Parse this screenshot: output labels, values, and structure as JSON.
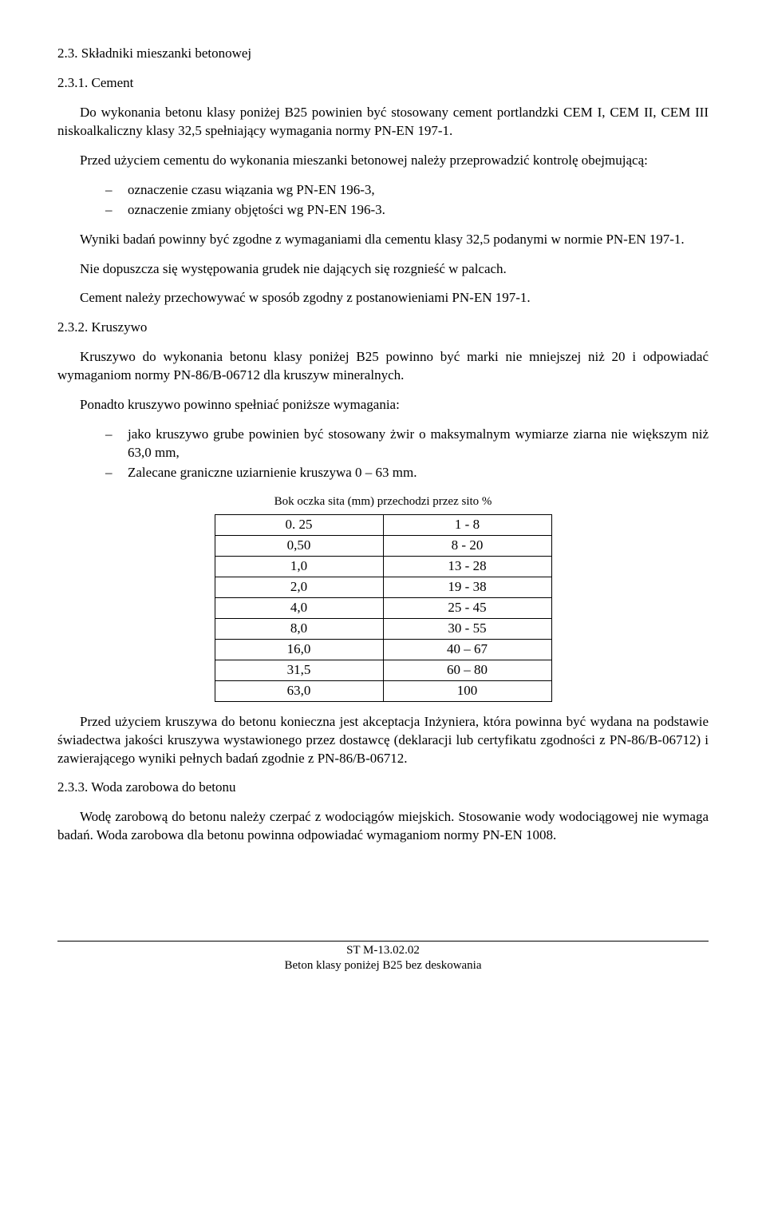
{
  "s23": {
    "heading": "2.3. Składniki mieszanki betonowej",
    "s231": {
      "heading": "2.3.1. Cement",
      "p1": "Do wykonania betonu klasy poniżej B25  powinien być stosowany cement portlandzki CEM I, CEM II, CEM III niskoalkaliczny klasy 32,5  spełniający wymagania normy PN-EN 197-1.",
      "p2": "Przed użyciem cementu do wykonania mieszanki betonowej należy przeprowadzić kontrolę obejmującą:",
      "bullets": [
        "oznaczenie czasu wiązania wg PN-EN 196-3,",
        "oznaczenie zmiany objętości wg PN-EN 196-3."
      ],
      "p3": "Wyniki badań powinny być zgodne z wymaganiami dla cementu klasy 32,5 podanymi w normie PN-EN 197-1.",
      "p4": "Nie dopuszcza się występowania grudek nie dających się rozgnieść w palcach.",
      "p5": "Cement należy przechowywać w sposób zgodny z postanowieniami PN-EN 197-1."
    },
    "s232": {
      "heading": "2.3.2. Kruszywo",
      "p1": "Kruszywo do wykonania betonu klasy poniżej B25 powinno być marki nie mniejszej niż 20 i odpowiadać wymaganiom normy PN-86/B-06712 dla kruszyw mineralnych.",
      "p2": "Ponadto kruszywo powinno spełniać poniższe wymagania:",
      "bullets": [
        "jako kruszywo grube powinien być stosowany żwir o maksymalnym wymiarze ziarna nie większym niż 63,0 mm,",
        "Zalecane graniczne uziarnienie kruszywa 0 – 63 mm."
      ],
      "table": {
        "caption": "Bok oczka sita (mm) przechodzi przez sito %",
        "rows": [
          [
            "0. 25",
            "1 - 8"
          ],
          [
            "0,50",
            "8 - 20"
          ],
          [
            "1,0",
            "13 - 28"
          ],
          [
            "2,0",
            "19 - 38"
          ],
          [
            "4,0",
            "25 - 45"
          ],
          [
            "8,0",
            "30 - 55"
          ],
          [
            "16,0",
            "40 – 67"
          ],
          [
            "31,5",
            "60 – 80"
          ],
          [
            "63,0",
            "100"
          ]
        ]
      },
      "p3": "Przed użyciem kruszywa do betonu konieczna jest akceptacja Inżyniera, która powinna być wydana na podstawie świadectwa jakości kruszywa wystawionego przez dostawcę (deklaracji lub certyfikatu zgodności z PN-86/B-06712) i zawierającego wyniki pełnych badań zgodnie z PN-86/B-06712."
    },
    "s233": {
      "heading": "2.3.3. Woda zarobowa do betonu",
      "p1": "Wodę zarobową do betonu należy czerpać z wodociągów miejskich. Stosowanie wody wodociągowej nie wymaga badań. Woda zarobowa dla betonu powinna odpowiadać wymaganiom normy PN-EN 1008."
    }
  },
  "footer": {
    "line1": "ST M-13.02.02",
    "line2": "Beton klasy poniżej B25 bez deskowania"
  }
}
